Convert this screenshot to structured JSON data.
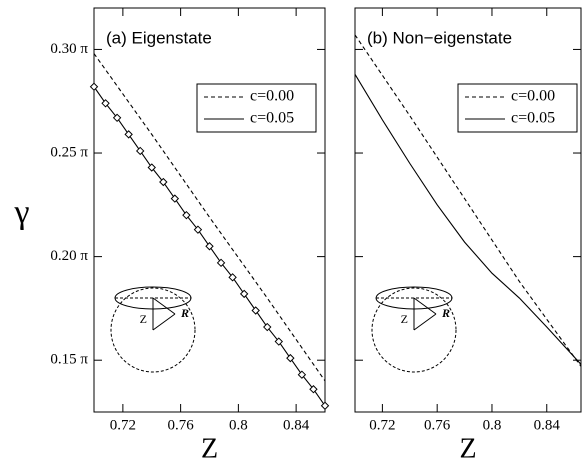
{
  "chart_data": [
    {
      "type": "line",
      "title": "(a) Eigenstate",
      "xlabel": "Z",
      "ylabel": "γ",
      "xlim": [
        0.7,
        0.86
      ],
      "ylim": [
        0.125,
        0.32
      ],
      "xticks": [
        0.72,
        0.76,
        0.8,
        0.84
      ],
      "yticks": [
        {
          "value": 0.15,
          "label": "0.15 π"
        },
        {
          "value": 0.2,
          "label": "0.20 π"
        },
        {
          "value": 0.25,
          "label": "0.25 π"
        },
        {
          "value": 0.3,
          "label": "0.30 π"
        }
      ],
      "inset_labels": [
        "Z",
        "R"
      ],
      "series": [
        {
          "name": "c=0.00",
          "color": "#000000",
          "dash": true,
          "x": [
            0.7,
            0.74,
            0.78,
            0.82,
            0.86
          ],
          "values": [
            0.298,
            0.259,
            0.219,
            0.18,
            0.14
          ]
        },
        {
          "name": "c=0.05",
          "color": "#000000",
          "dash": false,
          "marker": "diamond",
          "x": [
            0.7,
            0.708,
            0.716,
            0.724,
            0.732,
            0.74,
            0.748,
            0.756,
            0.764,
            0.772,
            0.78,
            0.788,
            0.796,
            0.804,
            0.812,
            0.82,
            0.828,
            0.836,
            0.844,
            0.852,
            0.86
          ],
          "values": [
            0.282,
            0.274,
            0.267,
            0.259,
            0.251,
            0.243,
            0.236,
            0.228,
            0.22,
            0.213,
            0.205,
            0.197,
            0.19,
            0.182,
            0.174,
            0.166,
            0.159,
            0.151,
            0.143,
            0.136,
            0.128
          ]
        }
      ]
    },
    {
      "type": "line",
      "title": "(b) Non−eigenstate",
      "xlabel": "Z",
      "xlim": [
        0.7,
        0.865
      ],
      "ylim": [
        0.125,
        0.32
      ],
      "xticks": [
        0.72,
        0.76,
        0.8,
        0.84
      ],
      "yticks": [
        0.15,
        0.2,
        0.25,
        0.3
      ],
      "show_ytick_labels": false,
      "inset_labels": [
        "Z",
        "R"
      ],
      "series": [
        {
          "name": "c=0.00",
          "color": "#000000",
          "dash": true,
          "x": [
            0.7,
            0.74,
            0.78,
            0.82,
            0.865
          ],
          "values": [
            0.307,
            0.268,
            0.228,
            0.188,
            0.147
          ]
        },
        {
          "name": "c=0.05",
          "color": "#000000",
          "dash": false,
          "x": [
            0.7,
            0.72,
            0.74,
            0.76,
            0.78,
            0.8,
            0.82,
            0.84,
            0.865
          ],
          "values": [
            0.288,
            0.266,
            0.245,
            0.225,
            0.207,
            0.192,
            0.18,
            0.166,
            0.148
          ]
        }
      ]
    }
  ]
}
